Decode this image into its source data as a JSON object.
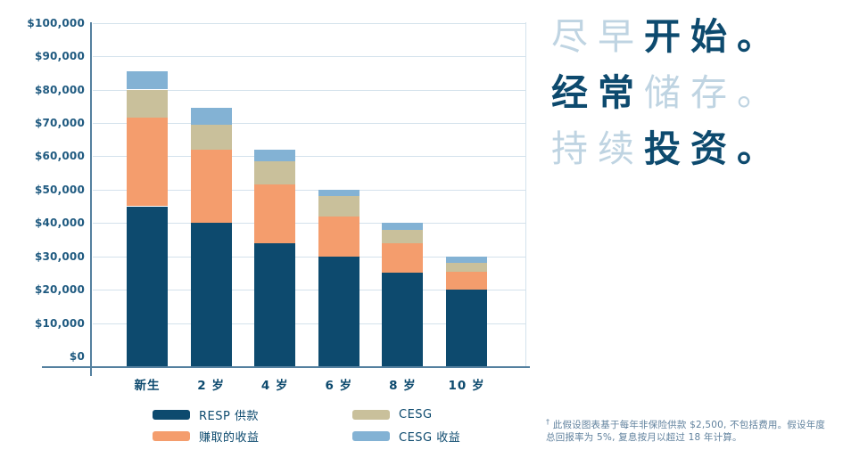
{
  "headline": {
    "lines": [
      {
        "segments": [
          {
            "text": "尽早",
            "emphasis": false
          },
          {
            "text": "开始",
            "emphasis": true
          },
          {
            "text": "。",
            "emphasis": true
          }
        ]
      },
      {
        "segments": [
          {
            "text": "经常",
            "emphasis": true
          },
          {
            "text": "储存",
            "emphasis": false
          },
          {
            "text": "。",
            "emphasis": false
          }
        ]
      },
      {
        "segments": [
          {
            "text": "持续",
            "emphasis": false
          },
          {
            "text": "投资",
            "emphasis": true
          },
          {
            "text": "。",
            "emphasis": true
          }
        ]
      }
    ]
  },
  "chart_data": {
    "type": "bar",
    "stacked": true,
    "title": "",
    "xlabel": "",
    "ylabel": "",
    "categories": [
      "新生",
      "2 岁",
      "4 岁",
      "6 岁",
      "8 岁",
      "10 岁"
    ],
    "series": [
      {
        "name": "RESP 供款",
        "color": "#0d4a6e",
        "values": [
          45000,
          40000,
          34000,
          30000,
          25000,
          20000
        ]
      },
      {
        "name": "赚取的收益",
        "color": "#f49d6d",
        "values": [
          26500,
          22000,
          17500,
          12000,
          9000,
          5500
        ]
      },
      {
        "name": "CESG",
        "color": "#c9c09b",
        "values": [
          8500,
          7500,
          7000,
          6000,
          4000,
          2500
        ]
      },
      {
        "name": "CESG 收益",
        "color": "#83b2d4",
        "values": [
          5500,
          5000,
          3500,
          2000,
          2000,
          2000
        ]
      }
    ],
    "totals": [
      85500,
      74500,
      62000,
      50000,
      40000,
      30000
    ],
    "y_axis": {
      "min": 0,
      "max": 100000,
      "step": 10000,
      "tick_labels": [
        "$0",
        "$10,000",
        "$20,000",
        "$30,000",
        "$40,000",
        "$50,000",
        "$60,000",
        "$70,000",
        "$80,000",
        "$90,000",
        "$100,000"
      ]
    },
    "grid": true,
    "legend_position": "bottom"
  },
  "footnote": {
    "marker": "†",
    "line1": " 此假设图表基于每年非保险供款 $2,500, 不包括费用。假设年度",
    "line2": "总回报率为 5%, 复息按月以超过 18 年计算。"
  },
  "colors": {
    "navy": "#0d4a6e",
    "orange": "#f49d6d",
    "tan": "#c9c09b",
    "light_blue": "#83b2d4",
    "pale_headline_blue": "#bfd4e2",
    "gridline": "#d4e2ec",
    "axis": "#54809f",
    "footnote_text": "#61829e"
  }
}
